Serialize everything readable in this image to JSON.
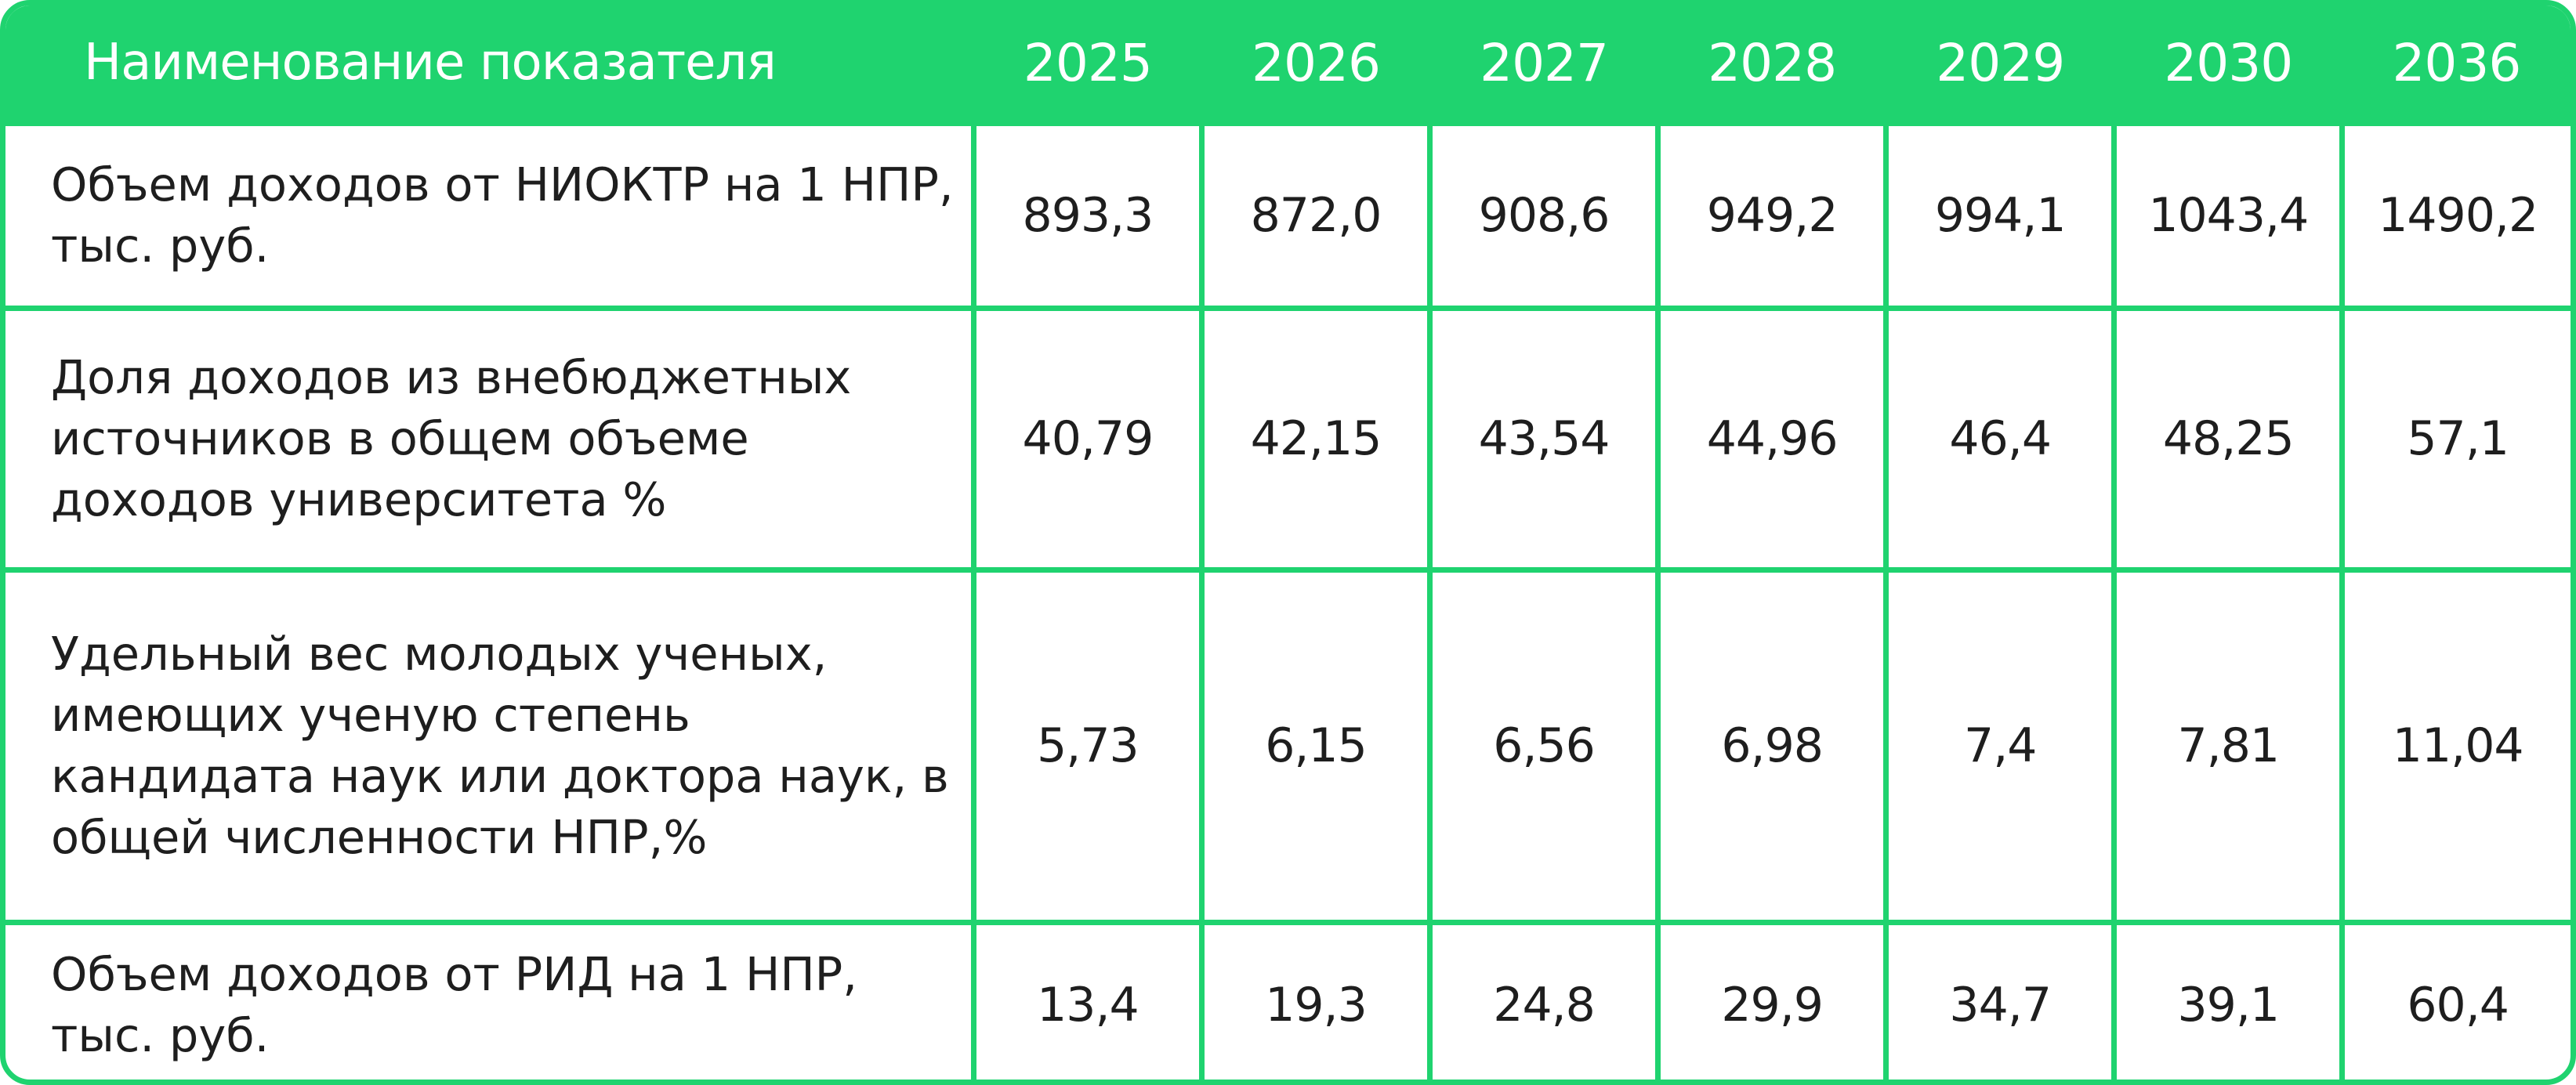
{
  "header": {
    "name_label": "Наименование показателя",
    "years": [
      "2025",
      "2026",
      "2027",
      "2028",
      "2029",
      "2030",
      "2036"
    ]
  },
  "rows": [
    {
      "label": "Объем доходов от НИОКТР на 1 НПР, тыс. руб.",
      "values": [
        "893,3",
        "872,0",
        "908,6",
        "949,2",
        "994,1",
        "1043,4",
        "1490,2"
      ]
    },
    {
      "label": "Доля доходов из внебюджетных источников в общем объеме доходов университета %",
      "values": [
        "40,79",
        "42,15",
        "43,54",
        "44,96",
        "46,4",
        "48,25",
        "57,1"
      ]
    },
    {
      "label": "Удельный вес молодых ученых, имеющих ученую степень кандидата наук или доктора наук, в общей численности НПР,%",
      "values": [
        "5,73",
        "6,15",
        "6,56",
        "6,98",
        "7,4",
        "7,81",
        "11,04"
      ]
    },
    {
      "label": "Объем доходов от РИД на 1 НПР, тыс. руб.",
      "values": [
        "13,4",
        "19,3",
        "24,8",
        "29,9",
        "34,7",
        "39,1",
        "60,4"
      ]
    }
  ],
  "colors": {
    "accent": "#1fd36f",
    "text": "#1e1e1e",
    "header_text": "#ffffff"
  }
}
